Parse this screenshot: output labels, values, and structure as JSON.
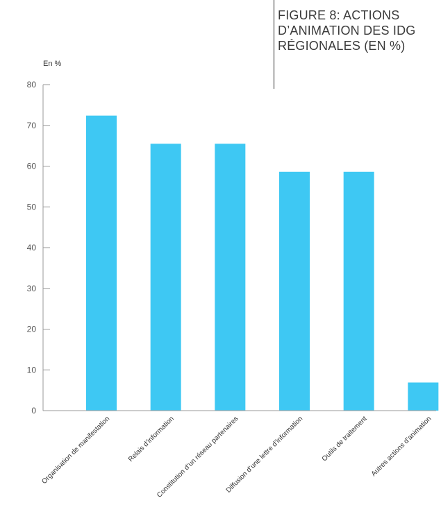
{
  "chart_data": {
    "type": "bar",
    "title": "FIGURE 8: ACTIONS D’ANIMATION DES IDG RÉGIONALES (EN %)",
    "ylabel": "En %",
    "xlabel": "",
    "categories": [
      "Organisation de manifestation",
      "Relais d’information",
      "Constitution d’un réseau partenaires",
      "Diffusion d’une lettre d’information",
      "Outils de traitement",
      "Autres actions d’animation"
    ],
    "values": [
      72.4,
      65.5,
      65.5,
      58.6,
      58.6,
      6.9
    ],
    "ylim": [
      0,
      80
    ],
    "yticks": [
      0,
      10,
      20,
      30,
      40,
      50,
      60,
      70,
      80
    ],
    "grid": false,
    "legend": "none",
    "bar_color": "#3ec8f3",
    "axis_color": "#9a9a9a"
  }
}
